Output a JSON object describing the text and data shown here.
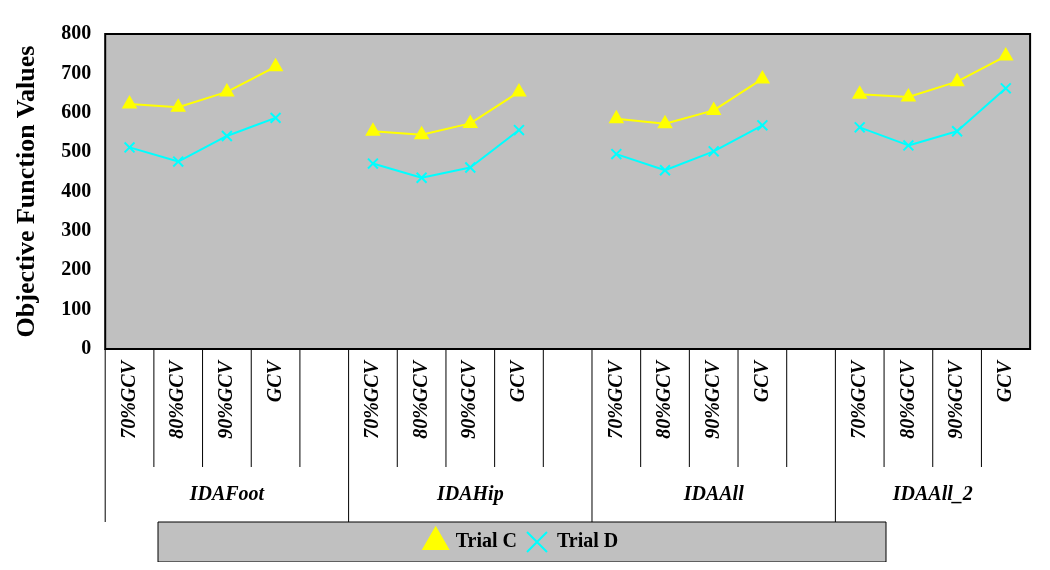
{
  "chart_data": {
    "type": "line",
    "ylabel": "Objective Function Values",
    "categories": [
      "70%GCV",
      "80%GCV",
      "90%GCV",
      "GCV",
      null,
      "70%GCV",
      "80%GCV",
      "90%GCV",
      "GCV",
      null,
      "70%GCV",
      "80%GCV",
      "90%GCV",
      "GCV",
      null,
      "70%GCV",
      "80%GCV",
      "90%GCV",
      "GCV"
    ],
    "annotations": [
      "IDAFoot",
      "IDAHip",
      "IDAAll",
      "IDAAll_2"
    ],
    "series": [
      {
        "name": "Trial C",
        "color": "#ffff00",
        "marker": "triangle",
        "values": [
          622,
          614,
          653,
          717,
          null,
          553,
          544,
          573,
          653,
          null,
          585,
          572,
          606,
          686,
          null,
          647,
          640,
          679,
          744
        ]
      },
      {
        "name": "Trial D",
        "color": "#00ffff",
        "marker": "cross",
        "values": [
          512,
          476,
          541,
          587,
          null,
          471,
          435,
          461,
          556,
          null,
          495,
          454,
          502,
          568,
          null,
          563,
          517,
          553,
          662
        ]
      }
    ],
    "ylim": [
      0,
      800
    ],
    "yticks": [
      0,
      100,
      200,
      300,
      400,
      500,
      600,
      700,
      800
    ],
    "grid": false,
    "legend": "bottom"
  }
}
